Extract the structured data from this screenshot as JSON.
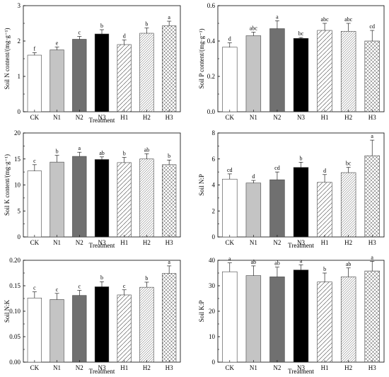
{
  "chart_data": [
    {
      "type": "bar",
      "ylabel": "Soil N content/(mg·g⁻¹)",
      "xlabel": "Treatment",
      "categories": [
        "CK",
        "N1",
        "N2",
        "N3",
        "H1",
        "H2",
        "H3"
      ],
      "values": [
        1.6,
        1.75,
        2.05,
        2.2,
        1.9,
        2.22,
        2.43
      ],
      "errors": [
        0.07,
        0.08,
        0.08,
        0.12,
        0.13,
        0.15,
        0.13
      ],
      "letters": [
        "f",
        "e",
        "c",
        "b",
        "d",
        "b",
        "a"
      ],
      "ylim": [
        0,
        3
      ],
      "yticks": [
        "0",
        "1",
        "2",
        "3"
      ],
      "yticks_values": [
        0,
        1,
        2,
        3
      ]
    },
    {
      "type": "bar",
      "ylabel": "Soil P content/(mg·g⁻¹)",
      "xlabel": "",
      "categories": [
        "CK",
        "N1",
        "N2",
        "N3",
        "H1",
        "H2",
        "H3"
      ],
      "values": [
        0.365,
        0.43,
        0.47,
        0.415,
        0.46,
        0.455,
        0.4
      ],
      "errors": [
        0.025,
        0.02,
        0.045,
        0.005,
        0.04,
        0.045,
        0.06
      ],
      "letters": [
        "d",
        "abc",
        "a",
        "bc",
        "abc",
        "abc",
        "cd"
      ],
      "ylim": [
        0,
        0.6
      ],
      "yticks": [
        "0.0",
        "0.2",
        "0.4",
        "0.6"
      ],
      "yticks_values": [
        0,
        0.2,
        0.4,
        0.6
      ]
    },
    {
      "type": "bar",
      "ylabel": "Soil K content/(mg·g⁻¹)",
      "xlabel": "Treatment",
      "categories": [
        "CK",
        "N1",
        "N2",
        "N3",
        "H1",
        "H2",
        "H3"
      ],
      "values": [
        12.7,
        14.4,
        15.5,
        14.9,
        14.3,
        15.0,
        13.9
      ],
      "errors": [
        1.2,
        1.3,
        0.8,
        0.5,
        1.0,
        1.0,
        0.9
      ],
      "letters": [
        "c",
        "b",
        "a",
        "ab",
        "b",
        "ab",
        "b"
      ],
      "ylim": [
        0,
        20
      ],
      "yticks": [
        "0",
        "5",
        "10",
        "15",
        "20"
      ],
      "yticks_values": [
        0,
        5,
        10,
        15,
        20
      ]
    },
    {
      "type": "bar",
      "ylabel": "Soil N:P",
      "xlabel": "Treatment",
      "categories": [
        "CK",
        "N1",
        "N2",
        "N3",
        "H1",
        "H2",
        "H3"
      ],
      "values": [
        4.45,
        4.15,
        4.4,
        5.35,
        4.2,
        4.95,
        6.25
      ],
      "errors": [
        0.4,
        0.2,
        0.6,
        0.4,
        0.6,
        0.4,
        1.2
      ],
      "letters": [
        "cd",
        "d",
        "cd",
        "b",
        "d",
        "bc",
        "a"
      ],
      "ylim": [
        0,
        8
      ],
      "yticks": [
        "0",
        "2",
        "4",
        "6",
        "8"
      ],
      "yticks_values": [
        0,
        2,
        4,
        6,
        8
      ]
    },
    {
      "type": "bar",
      "ylabel": "Soil N:K",
      "xlabel": "Treatment",
      "categories": [
        "CK",
        "N1",
        "N2",
        "N3",
        "H1",
        "H2",
        "H3"
      ],
      "values": [
        0.126,
        0.123,
        0.131,
        0.148,
        0.132,
        0.147,
        0.174
      ],
      "errors": [
        0.012,
        0.012,
        0.01,
        0.01,
        0.01,
        0.01,
        0.015
      ],
      "letters": [
        "c",
        "c",
        "c",
        "b",
        "c",
        "b",
        "a"
      ],
      "ylim": [
        0,
        0.2
      ],
      "yticks": [
        "0.00",
        "0.05",
        "0.10",
        "0.15",
        "0.20"
      ],
      "yticks_values": [
        0,
        0.05,
        0.1,
        0.15,
        0.2
      ]
    },
    {
      "type": "bar",
      "ylabel": "Soil K:P",
      "xlabel": "Treatment",
      "categories": [
        "CK",
        "N1",
        "N2",
        "N3",
        "H1",
        "H2",
        "H3"
      ],
      "values": [
        35.5,
        34.0,
        33.5,
        36.2,
        31.5,
        33.5,
        35.8
      ],
      "errors": [
        3.5,
        3.8,
        3.8,
        2.0,
        3.5,
        3.5,
        3.8
      ],
      "letters": [
        "a",
        "ab",
        "ab",
        "a",
        "b",
        "ab",
        "a"
      ],
      "ylim": [
        0,
        40
      ],
      "yticks": [
        "0",
        "10",
        "20",
        "30",
        "40"
      ],
      "yticks_values": [
        0,
        10,
        20,
        30,
        40
      ]
    }
  ],
  "styles": {
    "CK": {
      "fill": "#ffffff",
      "pattern": "none"
    },
    "N1": {
      "fill": "#c4c4c4",
      "pattern": "none"
    },
    "N2": {
      "fill": "#707070",
      "pattern": "none"
    },
    "N3": {
      "fill": "#000000",
      "pattern": "none"
    },
    "H1": {
      "fill": "#ffffff",
      "pattern": "sparse-diagonal"
    },
    "H2": {
      "fill": "#ffffff",
      "pattern": "dense-diagonal"
    },
    "H3": {
      "fill": "#ffffff",
      "pattern": "crosshatch"
    }
  }
}
